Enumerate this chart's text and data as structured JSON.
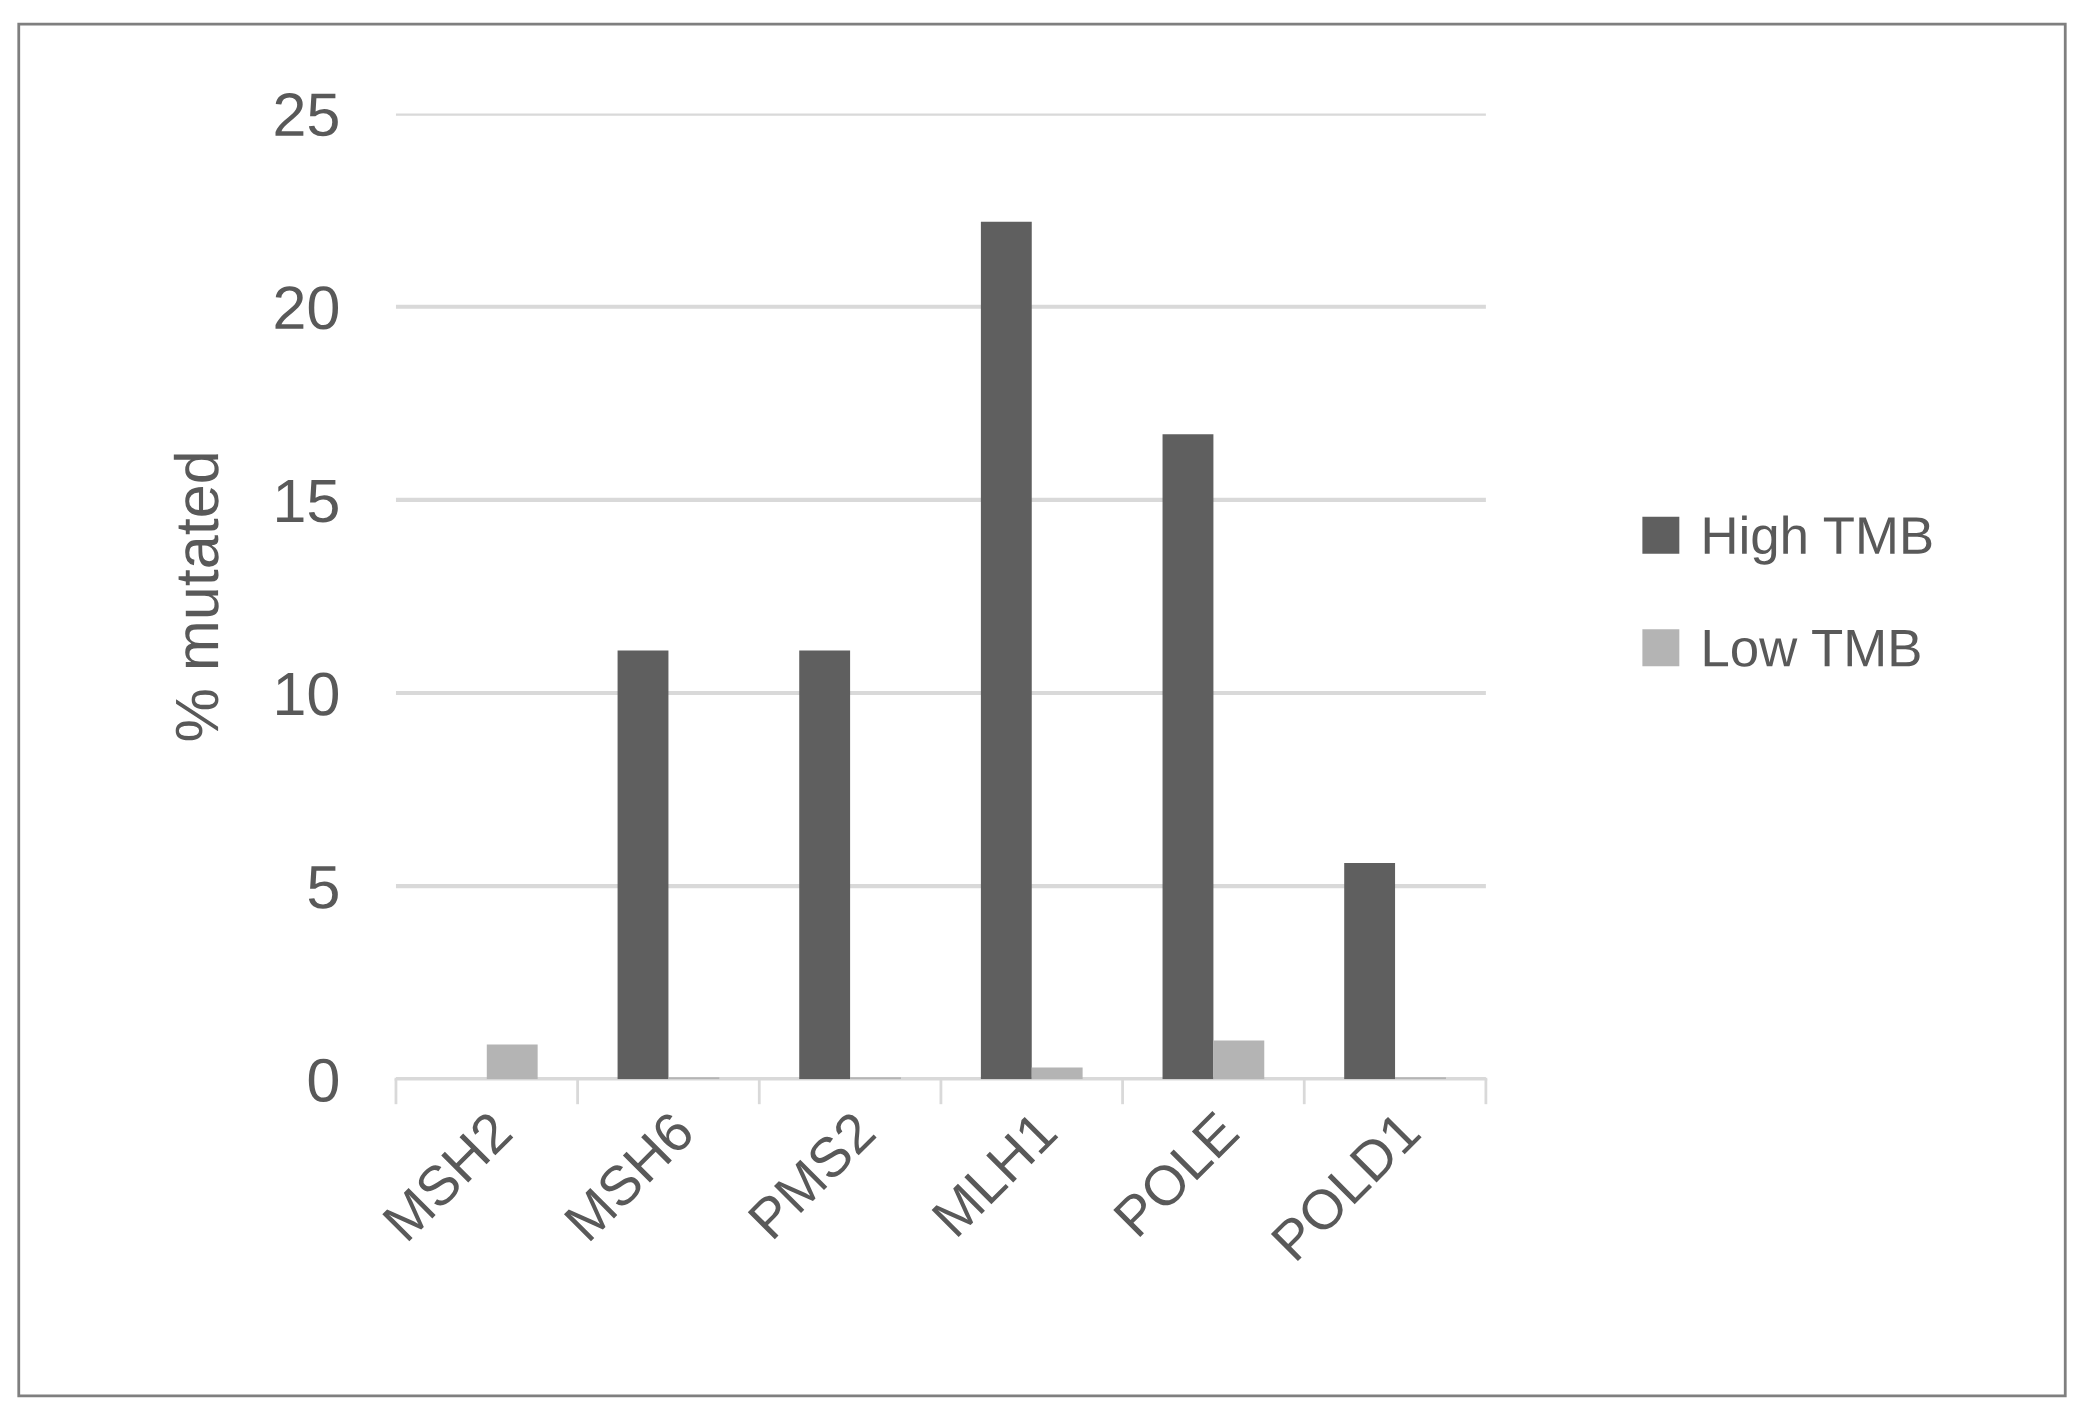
{
  "chart_data": {
    "type": "bar",
    "ylabel": "% mutated",
    "categories": [
      "MSH2",
      "MSH6",
      "PMS2",
      "MLH1",
      "POLE",
      "POLD1"
    ],
    "series": [
      {
        "name": "High TMB",
        "color": "#5f5f5f",
        "values": [
          0,
          11.1,
          11.1,
          22.2,
          16.7,
          5.6
        ]
      },
      {
        "name": "Low TMB",
        "color": "#b4b4b4",
        "values": [
          0.9,
          0.05,
          0.05,
          0.3,
          1.0,
          0.05
        ]
      }
    ],
    "ylim": [
      0,
      25
    ],
    "yticks": [
      0,
      5,
      10,
      15,
      20,
      25
    ],
    "grid": "y",
    "legend": "right"
  }
}
